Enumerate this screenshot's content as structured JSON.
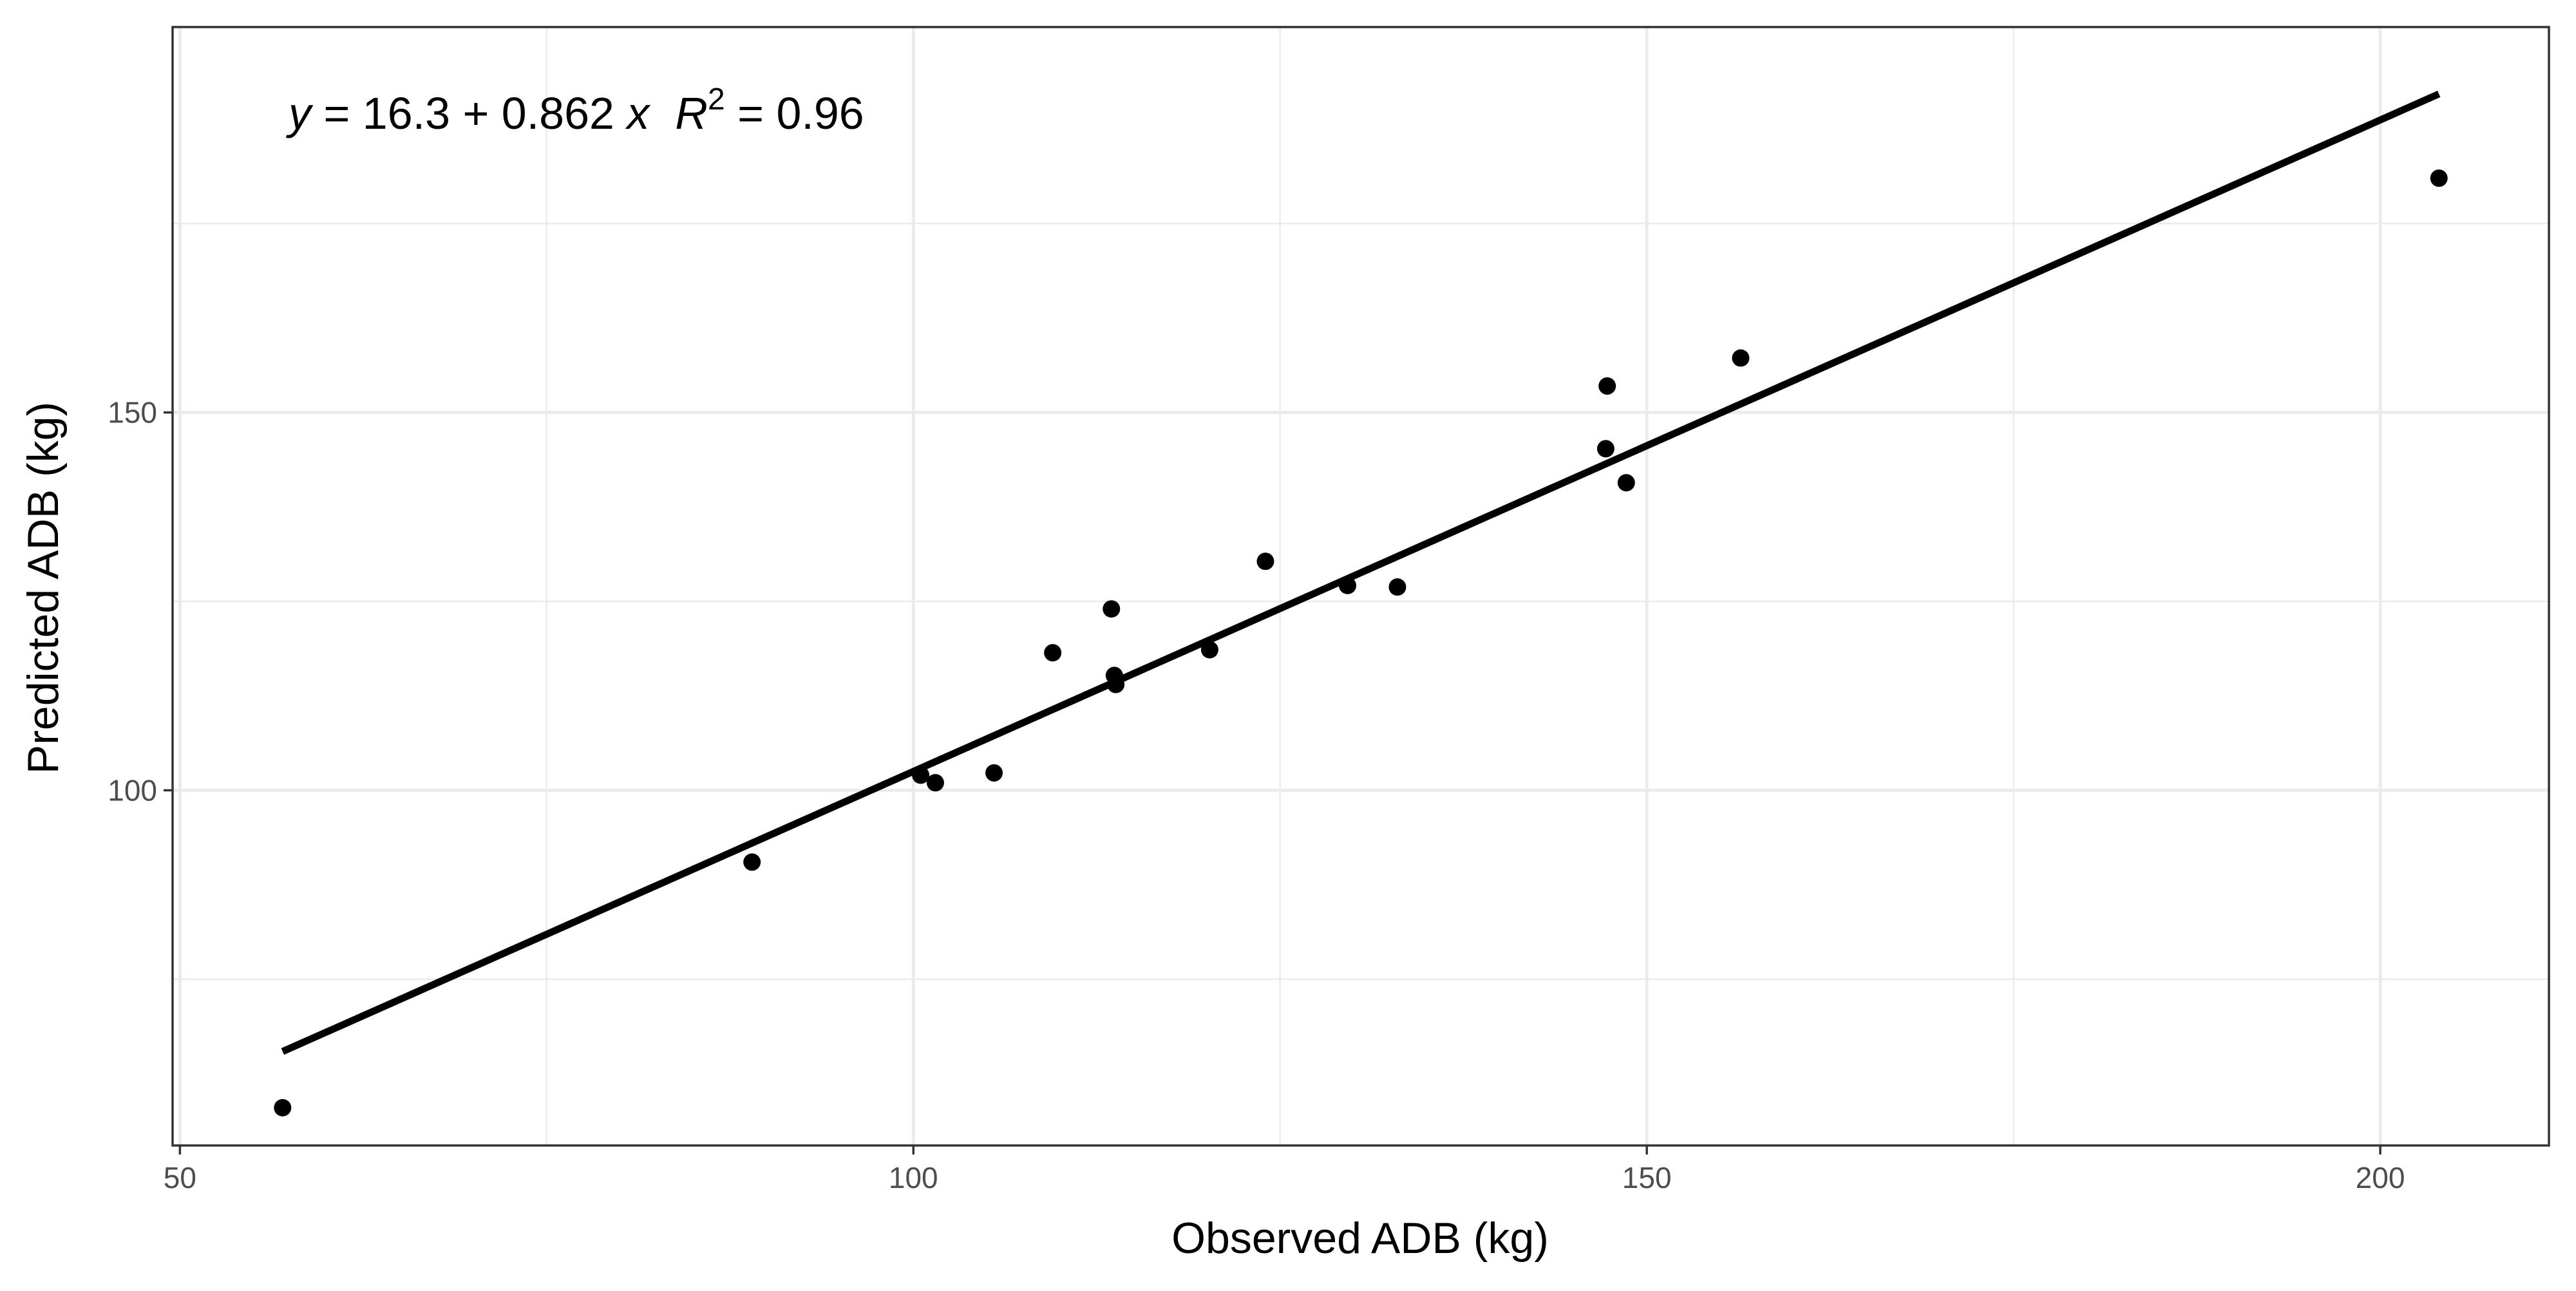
{
  "chart_data": {
    "type": "scatter",
    "title": "",
    "xlabel": "Observed ADB (kg)",
    "ylabel": "Predicted ADB (kg)",
    "xlim": [
      49.5,
      211.5
    ],
    "ylim": [
      53,
      201
    ],
    "x_ticks": [
      50,
      100,
      150,
      200
    ],
    "x_tick_labels": [
      "50",
      "100",
      "150",
      "200"
    ],
    "y_ticks": [
      100,
      150
    ],
    "y_tick_labels": [
      "100",
      "150"
    ],
    "x_minor": [
      75,
      125,
      175
    ],
    "y_minor": [
      75,
      125,
      175
    ],
    "grid": true,
    "annotation": {
      "y_var": "y",
      "eq_rest": " = 16.3 + 0.862 ",
      "x_var": "x",
      "r_var": "R",
      "r_sup": "2",
      "r_rest": " = 0.96"
    },
    "fit_line": {
      "intercept": 16.3,
      "slope": 0.862,
      "x_range": [
        57,
        204
      ]
    },
    "series": [
      {
        "x": [
          57,
          89,
          100.5,
          101.5,
          105.5,
          109.5,
          113.5,
          113.7,
          113.8,
          120.2,
          124,
          129.6,
          133,
          147.3,
          147.2,
          148.6,
          156.4,
          204
        ],
        "y": [
          58,
          90.5,
          102,
          101,
          102.3,
          118.2,
          124,
          115.2,
          114,
          118.6,
          130.3,
          127.1,
          126.9,
          153.5,
          145.2,
          140.7,
          157.2,
          181
        ]
      }
    ],
    "colors": {
      "points": "#000000",
      "line": "#000000",
      "panel_border": "#333333",
      "grid": "#ebebeb"
    }
  }
}
